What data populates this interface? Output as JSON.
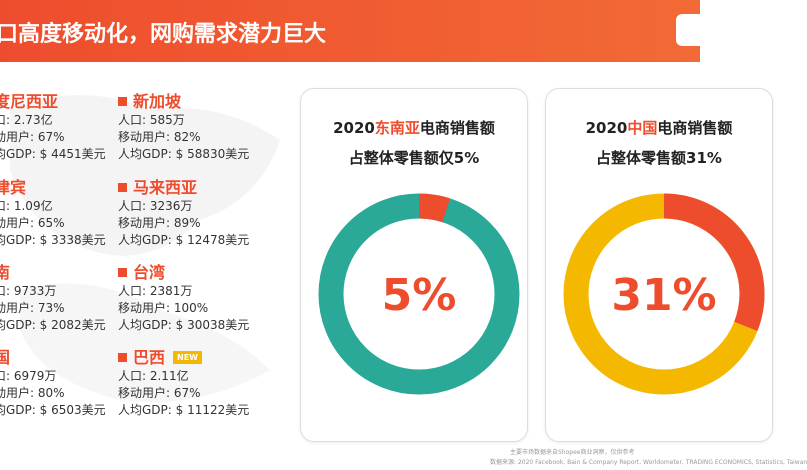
{
  "header": {
    "title": "口高度移动化，网购需求潜力巨大"
  },
  "countries": [
    {
      "name": "度尼西亚",
      "lines": [
        "口: 2.73亿",
        "动用户: 67%",
        "均GDP: $ 4451美元"
      ]
    },
    {
      "name": "律宾",
      "lines": [
        "口: 1.09亿",
        "动用户: 65%",
        "均GDP: $ 3338美元"
      ]
    },
    {
      "name": "南",
      "lines": [
        "口: 9733万",
        "动用户: 73%",
        "均GDP: $ 2082美元"
      ]
    },
    {
      "name": "国",
      "lines": [
        "口: 6979万",
        "动用户: 80%",
        "均GDP: $ 6503美元"
      ]
    },
    {
      "name": "新加坡",
      "lines": [
        "人口: 585万",
        "移动用户: 82%",
        "人均GDP: $ 58830美元"
      ]
    },
    {
      "name": "马来西亚",
      "lines": [
        "人口: 3236万",
        "移动用户: 89%",
        "人均GDP: $ 12478美元"
      ]
    },
    {
      "name": "台湾",
      "lines": [
        "人口: 2381万",
        "移动用户: 100%",
        "人均GDP: $ 30038美元"
      ]
    },
    {
      "name": "巴西",
      "badge": "NEW",
      "lines": [
        "人口: 2.11亿",
        "移动用户: 67%",
        "人均GDP: $ 11122美元"
      ]
    }
  ],
  "charts": [
    {
      "type": "donut",
      "title_start": "2020",
      "title_highlight": "东南亚",
      "title_end": "电商销售额",
      "subtitle": "占整体零售额仅5%",
      "value": 5,
      "value_label": "5%",
      "color": "#ee4d2d",
      "base_color": "#2aa898"
    },
    {
      "type": "donut",
      "title_start": "2020",
      "title_highlight": "中国",
      "title_end": "电商销售额",
      "subtitle": "占整体零售额31%",
      "value": 31,
      "value_label": "31%",
      "color": "#ee4d2d",
      "base_color": "#f5b800"
    }
  ],
  "footer": {
    "note": "主要市场数据来自Shopee商业洞察，仅供参考",
    "source": "数据来源: 2020 Facebook, Bain & Company Report, Worldometer, TRADING ECONOMICS, Statistics, Taiwan"
  }
}
